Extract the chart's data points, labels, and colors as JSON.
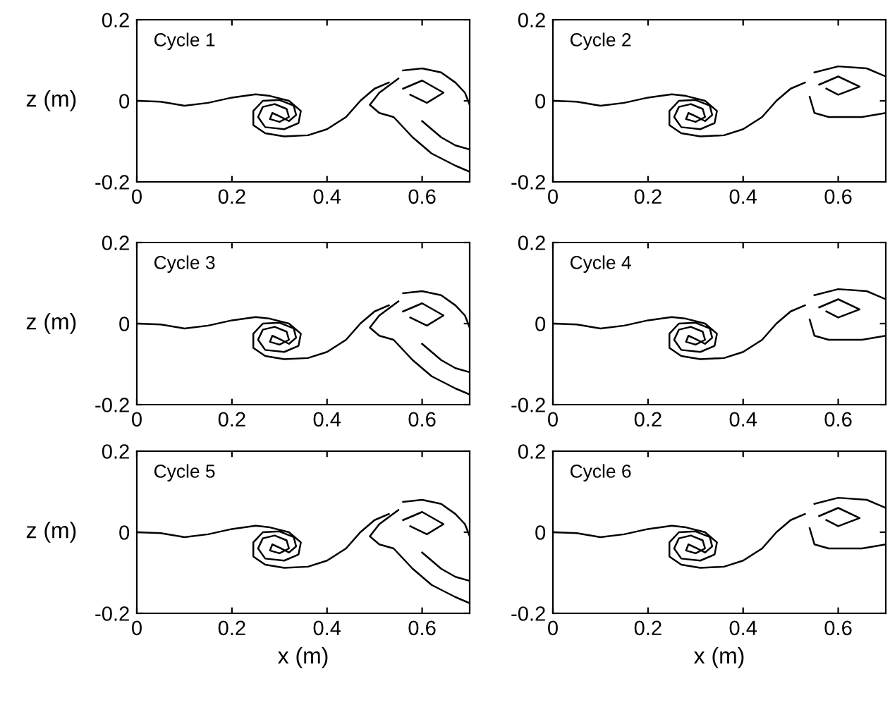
{
  "chart_data": [
    {
      "type": "line",
      "ylabel": "z (m)",
      "annotations": [
        "Cycle 1"
      ],
      "xlim": [
        0,
        0.7
      ],
      "ylim": [
        -0.2,
        0.2
      ],
      "xticks": [
        0,
        0.2,
        0.4,
        0.6
      ],
      "yticks": [
        -0.2,
        0,
        0.2
      ],
      "series": [
        {
          "color": "#000000",
          "x": [
            0,
            0.05,
            0.1,
            0.15,
            0.2,
            0.25,
            0.28,
            0.32,
            0.345,
            0.34,
            0.31,
            0.27,
            0.255,
            0.265,
            0.29,
            0.315,
            0.32,
            0.3,
            0.28,
            0.285,
            0.3,
            0.32,
            0.335,
            0.33,
            0.3,
            0.265,
            0.245,
            0.245,
            0.27,
            0.31,
            0.36,
            0.4,
            0.44,
            0.47,
            0.5,
            0.53
          ],
          "values": [
            0,
            -0.002,
            -0.012,
            -0.005,
            0.008,
            0.016,
            0.012,
            0,
            -0.025,
            -0.055,
            -0.07,
            -0.065,
            -0.04,
            -0.015,
            -0.008,
            -0.02,
            -0.04,
            -0.052,
            -0.045,
            -0.03,
            -0.038,
            -0.05,
            -0.035,
            -0.012,
            0.002,
            0,
            -0.025,
            -0.06,
            -0.08,
            -0.088,
            -0.085,
            -0.07,
            -0.04,
            0,
            0.03,
            0.045
          ]
        },
        {
          "color": "#000000",
          "x": [
            0.55,
            0.51,
            0.49,
            0.51,
            0.54,
            0.58,
            0.62,
            0.67,
            0.7
          ],
          "values": [
            0.055,
            0.02,
            -0.01,
            -0.03,
            -0.04,
            -0.09,
            -0.13,
            -0.16,
            -0.175
          ]
        },
        {
          "color": "#000000",
          "x": [
            0.56,
            0.6,
            0.64,
            0.67,
            0.69,
            0.7
          ],
          "values": [
            0.075,
            0.08,
            0.07,
            0.045,
            0.02,
            -0.01
          ]
        },
        {
          "color": "#000000",
          "x": [
            0.56,
            0.6,
            0.645,
            0.61,
            0.575
          ],
          "values": [
            0.03,
            0.05,
            0.02,
            -0.005,
            0.015
          ]
        },
        {
          "color": "#000000",
          "x": [
            0.6,
            0.64,
            0.67,
            0.7
          ],
          "values": [
            -0.05,
            -0.09,
            -0.11,
            -0.12
          ]
        }
      ]
    },
    {
      "type": "line",
      "annotations": [
        "Cycle 2"
      ],
      "xlim": [
        0,
        0.7
      ],
      "ylim": [
        -0.2,
        0.2
      ],
      "xticks": [
        0,
        0.2,
        0.4,
        0.6
      ],
      "yticks": [
        -0.2,
        0,
        0.2
      ],
      "series": [
        {
          "color": "#000000",
          "x": [
            0,
            0.05,
            0.1,
            0.15,
            0.2,
            0.25,
            0.28,
            0.32,
            0.345,
            0.34,
            0.31,
            0.27,
            0.255,
            0.265,
            0.29,
            0.315,
            0.32,
            0.3,
            0.28,
            0.285,
            0.3,
            0.32,
            0.335,
            0.33,
            0.3,
            0.265,
            0.245,
            0.245,
            0.27,
            0.31,
            0.36,
            0.4,
            0.44,
            0.47,
            0.5,
            0.53
          ],
          "values": [
            0,
            -0.002,
            -0.012,
            -0.005,
            0.008,
            0.016,
            0.012,
            0,
            -0.025,
            -0.055,
            -0.07,
            -0.065,
            -0.04,
            -0.015,
            -0.008,
            -0.02,
            -0.04,
            -0.052,
            -0.045,
            -0.03,
            -0.038,
            -0.05,
            -0.035,
            -0.012,
            0.002,
            0,
            -0.025,
            -0.06,
            -0.08,
            -0.088,
            -0.085,
            -0.07,
            -0.04,
            0,
            0.03,
            0.045
          ]
        },
        {
          "color": "#000000",
          "x": [
            0.55,
            0.6,
            0.66,
            0.7
          ],
          "values": [
            0.07,
            0.085,
            0.08,
            0.06
          ]
        },
        {
          "color": "#000000",
          "x": [
            0.54,
            0.55,
            0.58,
            0.65,
            0.7
          ],
          "values": [
            0.01,
            -0.03,
            -0.04,
            -0.04,
            -0.03
          ]
        },
        {
          "color": "#000000",
          "x": [
            0.56,
            0.6,
            0.645,
            0.6,
            0.575
          ],
          "values": [
            0.04,
            0.06,
            0.035,
            0.015,
            0.03
          ]
        }
      ]
    },
    {
      "type": "line",
      "ylabel": "z (m)",
      "annotations": [
        "Cycle 3"
      ],
      "xlim": [
        0,
        0.7
      ],
      "ylim": [
        -0.2,
        0.2
      ],
      "xticks": [
        0,
        0.2,
        0.4,
        0.6
      ],
      "yticks": [
        -0.2,
        0,
        0.2
      ],
      "series": [
        {
          "color": "#000000",
          "x": [
            0,
            0.05,
            0.1,
            0.15,
            0.2,
            0.25,
            0.28,
            0.32,
            0.345,
            0.34,
            0.31,
            0.27,
            0.255,
            0.265,
            0.29,
            0.315,
            0.32,
            0.3,
            0.28,
            0.285,
            0.3,
            0.32,
            0.335,
            0.33,
            0.3,
            0.265,
            0.245,
            0.245,
            0.27,
            0.31,
            0.36,
            0.4,
            0.44,
            0.47,
            0.5,
            0.53
          ],
          "values": [
            0,
            -0.002,
            -0.012,
            -0.005,
            0.008,
            0.016,
            0.012,
            0,
            -0.025,
            -0.055,
            -0.07,
            -0.065,
            -0.04,
            -0.015,
            -0.008,
            -0.02,
            -0.04,
            -0.052,
            -0.045,
            -0.03,
            -0.038,
            -0.05,
            -0.035,
            -0.012,
            0.002,
            0,
            -0.025,
            -0.06,
            -0.08,
            -0.088,
            -0.085,
            -0.07,
            -0.04,
            0,
            0.03,
            0.045
          ]
        },
        {
          "color": "#000000",
          "x": [
            0.55,
            0.51,
            0.49,
            0.51,
            0.54,
            0.58,
            0.62,
            0.67,
            0.7
          ],
          "values": [
            0.055,
            0.02,
            -0.01,
            -0.03,
            -0.04,
            -0.09,
            -0.13,
            -0.16,
            -0.175
          ]
        },
        {
          "color": "#000000",
          "x": [
            0.56,
            0.6,
            0.64,
            0.67,
            0.69,
            0.7
          ],
          "values": [
            0.075,
            0.08,
            0.07,
            0.045,
            0.02,
            -0.01
          ]
        },
        {
          "color": "#000000",
          "x": [
            0.56,
            0.6,
            0.645,
            0.61,
            0.575
          ],
          "values": [
            0.03,
            0.05,
            0.02,
            -0.005,
            0.015
          ]
        },
        {
          "color": "#000000",
          "x": [
            0.6,
            0.64,
            0.67,
            0.7
          ],
          "values": [
            -0.05,
            -0.09,
            -0.11,
            -0.12
          ]
        }
      ]
    },
    {
      "type": "line",
      "annotations": [
        "Cycle 4"
      ],
      "xlim": [
        0,
        0.7
      ],
      "ylim": [
        -0.2,
        0.2
      ],
      "xticks": [
        0,
        0.2,
        0.4,
        0.6
      ],
      "yticks": [
        -0.2,
        0,
        0.2
      ],
      "series": [
        {
          "color": "#000000",
          "x": [
            0,
            0.05,
            0.1,
            0.15,
            0.2,
            0.25,
            0.28,
            0.32,
            0.345,
            0.34,
            0.31,
            0.27,
            0.255,
            0.265,
            0.29,
            0.315,
            0.32,
            0.3,
            0.28,
            0.285,
            0.3,
            0.32,
            0.335,
            0.33,
            0.3,
            0.265,
            0.245,
            0.245,
            0.27,
            0.31,
            0.36,
            0.4,
            0.44,
            0.47,
            0.5,
            0.53
          ],
          "values": [
            0,
            -0.002,
            -0.012,
            -0.005,
            0.008,
            0.016,
            0.012,
            0,
            -0.025,
            -0.055,
            -0.07,
            -0.065,
            -0.04,
            -0.015,
            -0.008,
            -0.02,
            -0.04,
            -0.052,
            -0.045,
            -0.03,
            -0.038,
            -0.05,
            -0.035,
            -0.012,
            0.002,
            0,
            -0.025,
            -0.06,
            -0.08,
            -0.088,
            -0.085,
            -0.07,
            -0.04,
            0,
            0.03,
            0.045
          ]
        },
        {
          "color": "#000000",
          "x": [
            0.55,
            0.6,
            0.66,
            0.7
          ],
          "values": [
            0.07,
            0.085,
            0.08,
            0.06
          ]
        },
        {
          "color": "#000000",
          "x": [
            0.54,
            0.55,
            0.58,
            0.65,
            0.7
          ],
          "values": [
            0.01,
            -0.03,
            -0.04,
            -0.04,
            -0.03
          ]
        },
        {
          "color": "#000000",
          "x": [
            0.56,
            0.6,
            0.645,
            0.6,
            0.575
          ],
          "values": [
            0.04,
            0.06,
            0.035,
            0.015,
            0.03
          ]
        }
      ]
    },
    {
      "type": "line",
      "ylabel": "z (m)",
      "xlabel": "x (m)",
      "annotations": [
        "Cycle 5"
      ],
      "xlim": [
        0,
        0.7
      ],
      "ylim": [
        -0.2,
        0.2
      ],
      "xticks": [
        0,
        0.2,
        0.4,
        0.6
      ],
      "yticks": [
        -0.2,
        0,
        0.2
      ],
      "series": [
        {
          "color": "#000000",
          "x": [
            0,
            0.05,
            0.1,
            0.15,
            0.2,
            0.25,
            0.28,
            0.32,
            0.345,
            0.34,
            0.31,
            0.27,
            0.255,
            0.265,
            0.29,
            0.315,
            0.32,
            0.3,
            0.28,
            0.285,
            0.3,
            0.32,
            0.335,
            0.33,
            0.3,
            0.265,
            0.245,
            0.245,
            0.27,
            0.31,
            0.36,
            0.4,
            0.44,
            0.47,
            0.5,
            0.53
          ],
          "values": [
            0,
            -0.002,
            -0.012,
            -0.005,
            0.008,
            0.016,
            0.012,
            0,
            -0.025,
            -0.055,
            -0.07,
            -0.065,
            -0.04,
            -0.015,
            -0.008,
            -0.02,
            -0.04,
            -0.052,
            -0.045,
            -0.03,
            -0.038,
            -0.05,
            -0.035,
            -0.012,
            0.002,
            0,
            -0.025,
            -0.06,
            -0.08,
            -0.088,
            -0.085,
            -0.07,
            -0.04,
            0,
            0.03,
            0.045
          ]
        },
        {
          "color": "#000000",
          "x": [
            0.55,
            0.51,
            0.49,
            0.51,
            0.54,
            0.58,
            0.62,
            0.67,
            0.7
          ],
          "values": [
            0.055,
            0.02,
            -0.01,
            -0.03,
            -0.04,
            -0.09,
            -0.13,
            -0.16,
            -0.175
          ]
        },
        {
          "color": "#000000",
          "x": [
            0.56,
            0.6,
            0.64,
            0.67,
            0.69,
            0.7
          ],
          "values": [
            0.075,
            0.08,
            0.07,
            0.045,
            0.02,
            -0.01
          ]
        },
        {
          "color": "#000000",
          "x": [
            0.56,
            0.6,
            0.645,
            0.61,
            0.575
          ],
          "values": [
            0.03,
            0.05,
            0.02,
            -0.005,
            0.015
          ]
        },
        {
          "color": "#000000",
          "x": [
            0.6,
            0.64,
            0.67,
            0.7
          ],
          "values": [
            -0.05,
            -0.09,
            -0.11,
            -0.12
          ]
        }
      ]
    },
    {
      "type": "line",
      "xlabel": "x (m)",
      "annotations": [
        "Cycle 6"
      ],
      "xlim": [
        0,
        0.7
      ],
      "ylim": [
        -0.2,
        0.2
      ],
      "xticks": [
        0,
        0.2,
        0.4,
        0.6
      ],
      "yticks": [
        -0.2,
        0,
        0.2
      ],
      "series": [
        {
          "color": "#000000",
          "x": [
            0,
            0.05,
            0.1,
            0.15,
            0.2,
            0.25,
            0.28,
            0.32,
            0.345,
            0.34,
            0.31,
            0.27,
            0.255,
            0.265,
            0.29,
            0.315,
            0.32,
            0.3,
            0.28,
            0.285,
            0.3,
            0.32,
            0.335,
            0.33,
            0.3,
            0.265,
            0.245,
            0.245,
            0.27,
            0.31,
            0.36,
            0.4,
            0.44,
            0.47,
            0.5,
            0.53
          ],
          "values": [
            0,
            -0.002,
            -0.012,
            -0.005,
            0.008,
            0.016,
            0.012,
            0,
            -0.025,
            -0.055,
            -0.07,
            -0.065,
            -0.04,
            -0.015,
            -0.008,
            -0.02,
            -0.04,
            -0.052,
            -0.045,
            -0.03,
            -0.038,
            -0.05,
            -0.035,
            -0.012,
            0.002,
            0,
            -0.025,
            -0.06,
            -0.08,
            -0.088,
            -0.085,
            -0.07,
            -0.04,
            0,
            0.03,
            0.045
          ]
        },
        {
          "color": "#000000",
          "x": [
            0.55,
            0.6,
            0.66,
            0.7
          ],
          "values": [
            0.07,
            0.085,
            0.08,
            0.06
          ]
        },
        {
          "color": "#000000",
          "x": [
            0.54,
            0.55,
            0.58,
            0.65,
            0.7
          ],
          "values": [
            0.01,
            -0.03,
            -0.04,
            -0.04,
            -0.03
          ]
        },
        {
          "color": "#000000",
          "x": [
            0.56,
            0.6,
            0.645,
            0.6,
            0.575
          ],
          "values": [
            0.04,
            0.06,
            0.035,
            0.015,
            0.03
          ]
        }
      ]
    }
  ]
}
